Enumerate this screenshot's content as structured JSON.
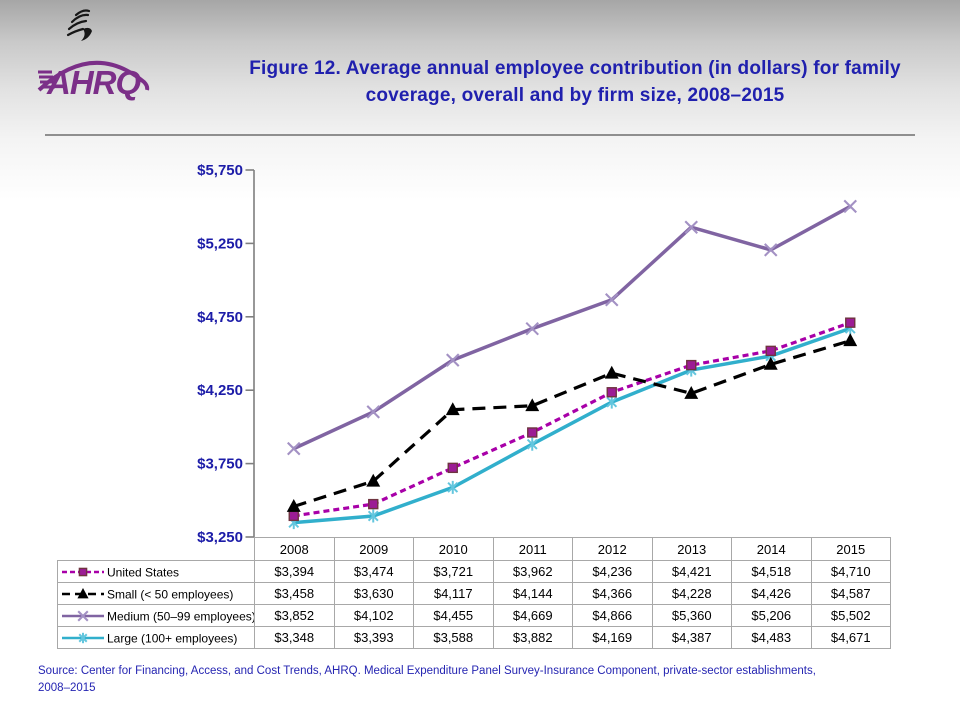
{
  "header": {
    "title": "Figure 12. Average annual employee contribution (in dollars) for family\ncoverage, overall and by firm size, 2008–2015",
    "logo_text": "AHRQ"
  },
  "chart_data": {
    "type": "line",
    "title": "Figure 12. Average annual employee contribution (in dollars) for family coverage, overall and by firm size, 2008–2015",
    "categories": [
      "2008",
      "2009",
      "2010",
      "2011",
      "2012",
      "2013",
      "2014",
      "2015"
    ],
    "ylim": [
      3250,
      5750
    ],
    "ytick_step": 500,
    "ytick_labels": [
      "$5,750",
      "$5,250",
      "$4,750",
      "$4,250",
      "$3,750",
      "$3,250"
    ],
    "grid": false,
    "legend_position": "table-left",
    "axis_color": "#7f7f7f",
    "tick_label_color": "#1C1CA8",
    "series": [
      {
        "name": "United States",
        "values": [
          3394,
          3474,
          3721,
          3962,
          4236,
          4421,
          4518,
          4710
        ],
        "color": "#A800A8",
        "dash": "6,4",
        "width": 3.2,
        "marker": "square",
        "marker_color": "#9C1C95",
        "marker_stroke": "#6F3440"
      },
      {
        "name": "Small (< 50 employees)",
        "values": [
          3458,
          3630,
          4117,
          4144,
          4366,
          4228,
          4426,
          4587
        ],
        "color": "#000000",
        "dash": "13,8",
        "width": 3.2,
        "marker": "triangle",
        "marker_color": "#000000",
        "marker_stroke": "#000000"
      },
      {
        "name": "Medium (50–99 employees)",
        "values": [
          3852,
          4102,
          4455,
          4669,
          4866,
          5360,
          5206,
          5502
        ],
        "color": "#8064A2",
        "dash": "",
        "width": 3.5,
        "marker": "x",
        "marker_color": "#A391C4",
        "marker_stroke": "#A391C4"
      },
      {
        "name": "Large (100+ employees)",
        "values": [
          3348,
          3393,
          3588,
          3882,
          4169,
          4387,
          4483,
          4671
        ],
        "color": "#31AFCC",
        "dash": "",
        "width": 3.5,
        "marker": "asterisk",
        "marker_color": "#63C6DE",
        "marker_stroke": "#63C6DE"
      }
    ]
  },
  "table": {
    "year_headers": [
      "2008",
      "2009",
      "2010",
      "2011",
      "2012",
      "2013",
      "2014",
      "2015"
    ],
    "rows": [
      {
        "label": "United States",
        "cells": [
          "$3,394",
          "$3,474",
          "$3,721",
          "$3,962",
          "$4,236",
          "$4,421",
          "$4,518",
          "$4,710"
        ]
      },
      {
        "label": "Small (< 50 employees)",
        "cells": [
          "$3,458",
          "$3,630",
          "$4,117",
          "$4,144",
          "$4,366",
          "$4,228",
          "$4,426",
          "$4,587"
        ]
      },
      {
        "label": "Medium (50–99 employees)",
        "cells": [
          "$3,852",
          "$4,102",
          "$4,455",
          "$4,669",
          "$4,866",
          "$5,360",
          "$5,206",
          "$5,502"
        ]
      },
      {
        "label": "Large (100+ employees)",
        "cells": [
          "$3,348",
          "$3,393",
          "$3,588",
          "$3,882",
          "$4,169",
          "$4,387",
          "$4,483",
          "$4,671"
        ]
      }
    ]
  },
  "footer": {
    "source": "Source: Center for Financing, Access, and Cost Trends, AHRQ. Medical Expenditure Panel Survey-Insurance Component, private-sector establishments,\n2008–2015"
  }
}
